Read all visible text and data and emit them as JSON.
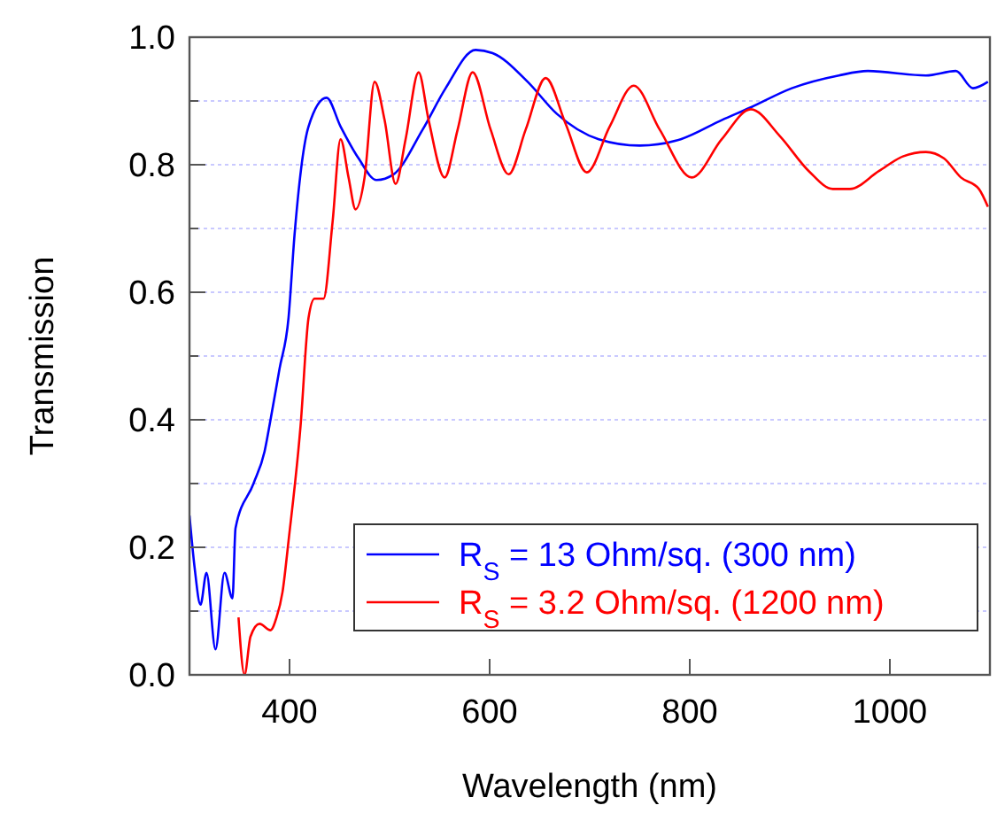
{
  "chart_data": {
    "type": "line",
    "xlabel": "Wavelength (nm)",
    "ylabel": "Transmission",
    "xlim": [
      300,
      1100
    ],
    "xticks": [
      400,
      600,
      800,
      1000
    ],
    "ylim": [
      0,
      1
    ],
    "yticks": [
      {
        "value": 0,
        "label": "0.0"
      },
      {
        "value": 0.1,
        "label": null
      },
      0.2,
      {
        "value": 0.3,
        "label": null
      },
      0.4,
      {
        "value": 0.5,
        "label": null
      },
      0.6,
      {
        "value": 0.7,
        "label": null
      },
      0.8,
      {
        "value": 0.9,
        "label": null
      },
      {
        "value": 1,
        "label": "1.0"
      }
    ],
    "grid": "y",
    "legend": "bottom right",
    "line_style": "solid",
    "marker": "none",
    "series": [
      {
        "name": "R$_{S}$ = 13 Ohm/sq. (300 nm)",
        "color": "#0000ff",
        "x": [
          300,
          305,
          311,
          317,
          326,
          335,
          343,
          346,
          364,
          375,
          381,
          390,
          399,
          405,
          419,
          437,
          451,
          469,
          487,
          504,
          533,
          556,
          586,
          603,
          638,
          667,
          709,
          750,
          791,
          832,
          861,
          902,
          949,
          978,
          1036,
          1066,
          1083,
          1098
        ],
        "values": [
          0.25,
          0.17,
          0.11,
          0.16,
          0.04,
          0.16,
          0.12,
          0.23,
          0.3,
          0.35,
          0.4,
          0.48,
          0.56,
          0.69,
          0.86,
          0.905,
          0.86,
          0.81,
          0.776,
          0.785,
          0.855,
          0.92,
          0.98,
          0.975,
          0.93,
          0.88,
          0.84,
          0.83,
          0.84,
          0.87,
          0.89,
          0.92,
          0.94,
          0.947,
          0.94,
          0.947,
          0.92,
          0.93
        ]
      },
      {
        "name": "R$_{S}$ = 3.2 Ohm/sq. (1200 nm)",
        "color": "#ff0000",
        "x": [
          349,
          355,
          361,
          370,
          381,
          387,
          393,
          399,
          411,
          419,
          425,
          434,
          443,
          451,
          459,
          466,
          475,
          485,
          495,
          506,
          516,
          529,
          539,
          555,
          568,
          583,
          601,
          619,
          636,
          656,
          676,
          697,
          720,
          744,
          770,
          802,
          832,
          861,
          890,
          919,
          943,
          960,
          989,
          1013,
          1036,
          1054,
          1071,
          1089,
          1098
        ],
        "values": [
          0.09,
          0.0,
          0.06,
          0.08,
          0.07,
          0.09,
          0.13,
          0.21,
          0.39,
          0.56,
          0.59,
          0.59,
          0.71,
          0.84,
          0.78,
          0.73,
          0.78,
          0.93,
          0.87,
          0.77,
          0.84,
          0.945,
          0.87,
          0.78,
          0.855,
          0.945,
          0.855,
          0.785,
          0.855,
          0.936,
          0.864,
          0.788,
          0.86,
          0.924,
          0.855,
          0.78,
          0.84,
          0.887,
          0.845,
          0.79,
          0.762,
          0.762,
          0.79,
          0.813,
          0.82,
          0.81,
          0.78,
          0.762,
          0.734
        ]
      }
    ]
  }
}
